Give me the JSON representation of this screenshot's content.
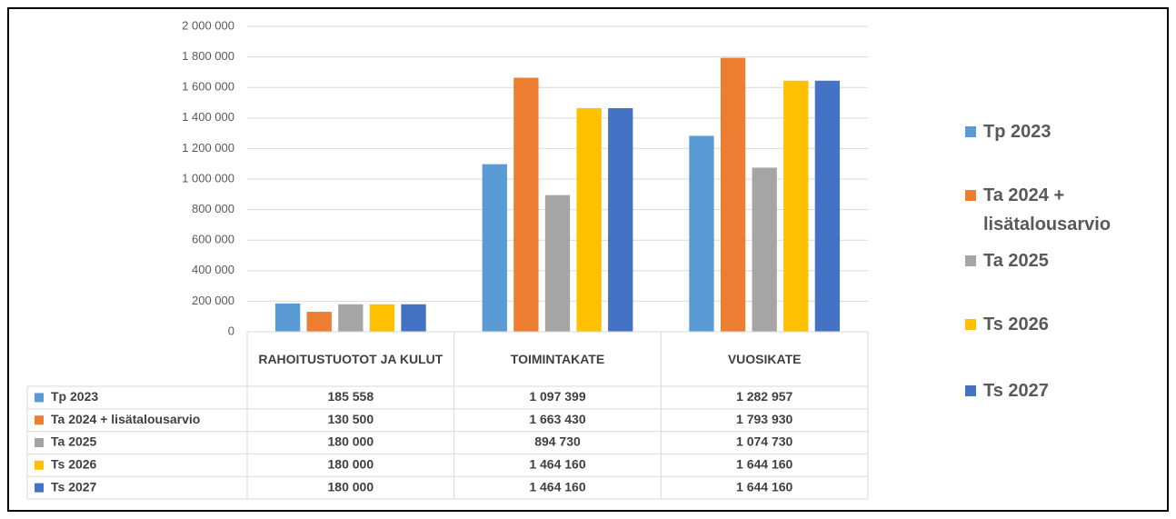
{
  "chart_data": {
    "type": "bar",
    "categories": [
      "RAHOITUSTUOTOT JA KULUT",
      "TOIMINTAKATE",
      "VUOSIKATE"
    ],
    "series": [
      {
        "name": "Tp 2023",
        "color": "#5b9bd5",
        "values": [
          185558,
          1097399,
          1282957
        ],
        "value_labels": [
          "185 558",
          "1 097 399",
          "1 282 957"
        ]
      },
      {
        "name": "Ta 2024 + lisätalousarvio",
        "color": "#ed7d31",
        "values": [
          130500,
          1663430,
          1793930
        ],
        "value_labels": [
          "130 500",
          "1 663 430",
          "1 793 930"
        ]
      },
      {
        "name": "Ta 2025",
        "color": "#a5a5a5",
        "values": [
          180000,
          894730,
          1074730
        ],
        "value_labels": [
          "180 000",
          "894 730",
          "1 074 730"
        ]
      },
      {
        "name": "Ts 2026",
        "color": "#ffc000",
        "values": [
          180000,
          1464160,
          1644160
        ],
        "value_labels": [
          "180 000",
          "1 464 160",
          "1 644 160"
        ]
      },
      {
        "name": "Ts 2027",
        "color": "#4472c4",
        "values": [
          180000,
          1464160,
          1644160
        ],
        "value_labels": [
          "180 000",
          "1 464 160",
          "1 644 160"
        ]
      }
    ],
    "ylim": [
      0,
      2000000
    ],
    "yticks": [
      0,
      {
        "value": 200000,
        "label": "200 000"
      },
      {
        "value": 400000,
        "label": "400 000"
      },
      {
        "value": 600000,
        "label": "600 000"
      },
      {
        "value": 800000,
        "label": "800 000"
      },
      {
        "value": 1000000,
        "label": "1 000 000"
      },
      {
        "value": 1200000,
        "label": "1 200 000"
      },
      {
        "value": 1400000,
        "label": "1 400 000"
      },
      {
        "value": 1600000,
        "label": "1 600 000"
      },
      {
        "value": 1800000,
        "label": "1 800 000"
      },
      {
        "value": 2000000,
        "label": "2 000 000"
      }
    ],
    "grid": true,
    "legend": "right"
  }
}
